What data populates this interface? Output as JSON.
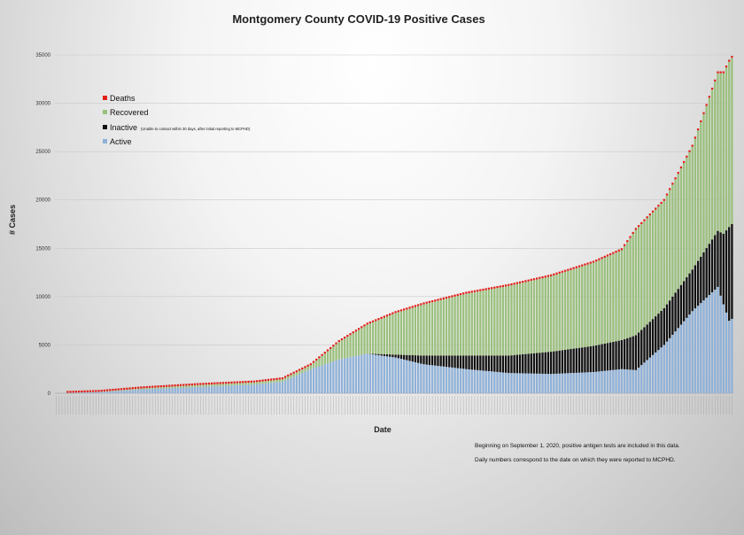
{
  "chart_data": {
    "type": "bar",
    "stacked": true,
    "title": "Montgomery County COVID-19 Positive Cases",
    "xlabel": "Date",
    "ylabel": "# Cases",
    "ylim": [
      0,
      35000
    ],
    "yticks": [
      "0",
      "5000",
      "10000",
      "15000",
      "20000",
      "25000",
      "30000",
      "35000"
    ],
    "grid": true,
    "legend_position": "top-left",
    "series": [
      {
        "name": "Deaths",
        "color": "#e0201b"
      },
      {
        "name": "Recovered",
        "color": "#9bc07e"
      },
      {
        "name": "Inactive",
        "color": "#111111",
        "note": "(Unable to contact within 30 days, after initial reporting to MCPHD)"
      },
      {
        "name": "Active",
        "color": "#8fb1d8"
      }
    ],
    "legend_order": [
      "Deaths",
      "Recovered",
      "Inactive",
      "Active"
    ],
    "num_bars": 240,
    "anchors": [
      {
        "i": 0,
        "active": 5,
        "inactive": 0,
        "recovered": 0,
        "deaths": 0
      },
      {
        "i": 15,
        "active": 120,
        "inactive": 0,
        "recovered": 20,
        "deaths": 2
      },
      {
        "i": 30,
        "active": 400,
        "inactive": 0,
        "recovered": 100,
        "deaths": 10
      },
      {
        "i": 50,
        "active": 650,
        "inactive": 0,
        "recovered": 200,
        "deaths": 20
      },
      {
        "i": 70,
        "active": 900,
        "inactive": 0,
        "recovered": 220,
        "deaths": 30
      },
      {
        "i": 80,
        "active": 1200,
        "inactive": 0,
        "recovered": 250,
        "deaths": 35
      },
      {
        "i": 90,
        "active": 2500,
        "inactive": 0,
        "recovered": 400,
        "deaths": 40
      },
      {
        "i": 100,
        "active": 3500,
        "inactive": 0,
        "recovered": 1800,
        "deaths": 50
      },
      {
        "i": 110,
        "active": 4100,
        "inactive": 0,
        "recovered": 3000,
        "deaths": 60
      },
      {
        "i": 120,
        "active": 3700,
        "inactive": 300,
        "recovered": 4300,
        "deaths": 70
      },
      {
        "i": 130,
        "active": 3000,
        "inactive": 900,
        "recovered": 5300,
        "deaths": 80
      },
      {
        "i": 145,
        "active": 2500,
        "inactive": 1400,
        "recovered": 6400,
        "deaths": 90
      },
      {
        "i": 160,
        "active": 2100,
        "inactive": 1800,
        "recovered": 7200,
        "deaths": 100
      },
      {
        "i": 175,
        "active": 2000,
        "inactive": 2300,
        "recovered": 7800,
        "deaths": 110
      },
      {
        "i": 190,
        "active": 2200,
        "inactive": 2700,
        "recovered": 8600,
        "deaths": 120
      },
      {
        "i": 200,
        "active": 2500,
        "inactive": 3000,
        "recovered": 9300,
        "deaths": 130
      },
      {
        "i": 205,
        "active": 2400,
        "inactive": 3600,
        "recovered": 10900,
        "deaths": 140
      },
      {
        "i": 215,
        "active": 5000,
        "inactive": 3800,
        "recovered": 11100,
        "deaths": 150
      },
      {
        "i": 225,
        "active": 8500,
        "inactive": 4300,
        "recovered": 12700,
        "deaths": 160
      },
      {
        "i": 234,
        "active": 11000,
        "inactive": 5800,
        "recovered": 16300,
        "deaths": 170
      },
      {
        "i": 236,
        "active": 9200,
        "inactive": 7300,
        "recovered": 16600,
        "deaths": 175
      },
      {
        "i": 238,
        "active": 7500,
        "inactive": 9700,
        "recovered": 17100,
        "deaths": 180
      },
      {
        "i": 239,
        "active": 7700,
        "inactive": 9800,
        "recovered": 17200,
        "deaths": 185
      }
    ],
    "annotations": [
      "Beginning on September 1, 2020, positive antigen tests are included in this data.",
      "Daily numbers correspond to the date on which they were reported to MCPHD."
    ]
  }
}
